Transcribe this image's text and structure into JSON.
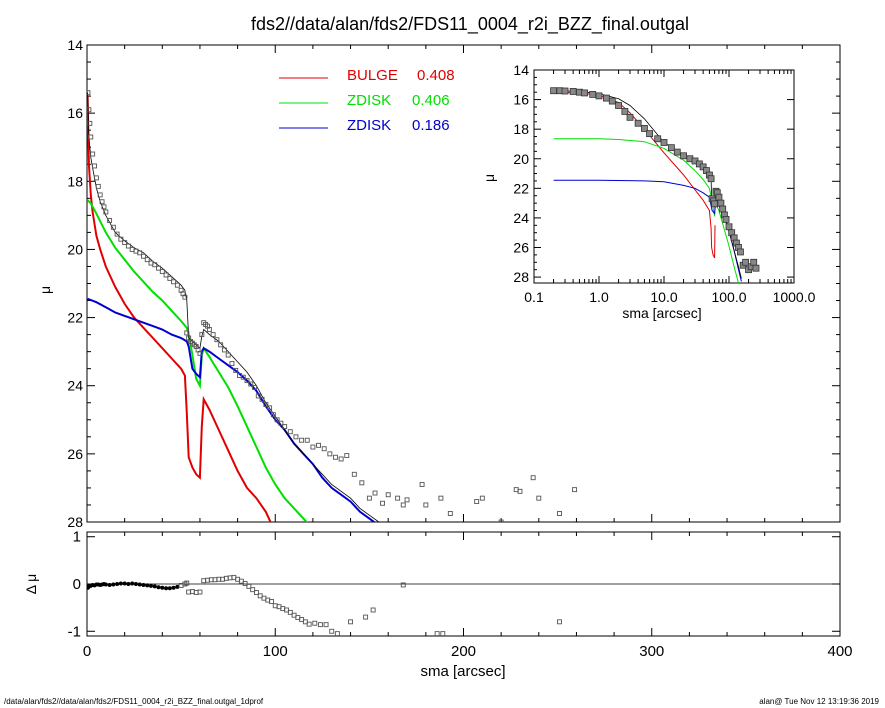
{
  "chart_data": [
    {
      "type": "line",
      "panel": "main",
      "title": "fds2//data/alan/fds2/FDS11_0004_r2i_BZZ_final.outgal",
      "xlabel": "",
      "ylabel": "μ",
      "xlim": [
        0,
        400
      ],
      "ylim": [
        28,
        14
      ],
      "y_inverted": true,
      "xticks": [
        0,
        100,
        200,
        300,
        400
      ],
      "yticks": [
        14,
        16,
        18,
        20,
        22,
        24,
        26,
        28
      ],
      "legend": [
        {
          "name": "BULGE",
          "value": "0.408",
          "color": "#e00000"
        },
        {
          "name": "ZDISK",
          "value": "0.406",
          "color": "#00e000"
        },
        {
          "name": "ZDISK",
          "value": "0.186",
          "color": "#0000d0"
        }
      ],
      "series": [
        {
          "name": "BULGE",
          "color": "#e00000",
          "x": [
            0.3,
            1,
            2,
            3,
            5,
            7,
            10,
            15,
            20,
            25,
            30,
            35,
            40,
            45,
            50,
            52,
            53,
            54,
            56,
            58,
            60,
            61,
            62,
            65,
            70,
            75,
            80,
            85,
            90,
            95,
            100
          ],
          "y": [
            15.5,
            17.5,
            18.4,
            18.9,
            19.6,
            20.0,
            20.5,
            21.1,
            21.6,
            22.0,
            22.3,
            22.6,
            22.9,
            23.2,
            23.5,
            23.7,
            24.8,
            26.1,
            26.4,
            26.6,
            26.7,
            25.2,
            24.4,
            24.7,
            25.3,
            25.9,
            26.5,
            27.0,
            27.3,
            27.7,
            28.3
          ]
        },
        {
          "name": "ZDISK",
          "color": "#00e000",
          "x": [
            0.3,
            2,
            5,
            10,
            15,
            20,
            25,
            30,
            35,
            40,
            45,
            50,
            53,
            54,
            56,
            58,
            60,
            61,
            62,
            65,
            70,
            75,
            80,
            85,
            90,
            95,
            100,
            105,
            110,
            115,
            120
          ],
          "y": [
            18.55,
            18.65,
            18.95,
            19.5,
            19.95,
            20.3,
            20.65,
            20.95,
            21.25,
            21.5,
            21.8,
            22.1,
            22.3,
            22.5,
            23.1,
            23.8,
            24.0,
            23.1,
            22.9,
            23.15,
            23.6,
            24.05,
            24.6,
            25.2,
            25.8,
            26.4,
            26.9,
            27.3,
            27.6,
            27.9,
            28.2
          ]
        },
        {
          "name": "ZDISK",
          "color": "#0000d0",
          "x": [
            0.3,
            5,
            10,
            15,
            20,
            25,
            30,
            35,
            40,
            45,
            50,
            53,
            54,
            56,
            58,
            60,
            61,
            62,
            65,
            70,
            75,
            80,
            85,
            90,
            95,
            100,
            105,
            110,
            115,
            120,
            125,
            130,
            135,
            140,
            145,
            150,
            155
          ],
          "y": [
            21.45,
            21.55,
            21.7,
            21.85,
            21.95,
            22.05,
            22.15,
            22.25,
            22.35,
            22.5,
            22.6,
            22.7,
            22.85,
            23.5,
            23.65,
            23.75,
            23.0,
            22.9,
            23.0,
            23.2,
            23.4,
            23.6,
            23.85,
            24.15,
            24.6,
            25.0,
            25.3,
            25.7,
            26.0,
            26.3,
            26.7,
            27.0,
            27.2,
            27.4,
            27.7,
            27.9,
            28.1
          ]
        },
        {
          "name": "total",
          "color": "#000000",
          "x": [
            0.3,
            1,
            2,
            3,
            5,
            7,
            10,
            15,
            20,
            25,
            30,
            35,
            40,
            45,
            50,
            52,
            53,
            54,
            56,
            58,
            60,
            61,
            62,
            65,
            70,
            75,
            80,
            85,
            90,
            95,
            100,
            105,
            110,
            115,
            120,
            125,
            130,
            135,
            140,
            145,
            150,
            155
          ],
          "y": [
            15.4,
            16.7,
            17.3,
            17.6,
            18.2,
            18.6,
            19.0,
            19.5,
            19.75,
            19.95,
            20.1,
            20.35,
            20.55,
            20.8,
            21.05,
            21.2,
            21.5,
            22.6,
            22.7,
            22.8,
            22.9,
            22.55,
            22.35,
            22.5,
            22.7,
            23.0,
            23.3,
            23.6,
            24.0,
            24.5,
            24.9,
            25.3,
            25.7,
            26.0,
            26.3,
            26.6,
            26.9,
            27.1,
            27.3,
            27.6,
            27.8,
            28.0
          ]
        }
      ],
      "points": {
        "name": "data",
        "x": [
          0.5,
          1,
          1.5,
          2,
          3,
          4,
          5,
          6,
          7,
          8,
          9,
          10,
          12,
          14,
          16,
          18,
          20,
          22,
          24,
          26,
          28,
          30,
          32,
          34,
          36,
          38,
          40,
          42,
          44,
          46,
          48,
          50,
          51,
          52,
          53,
          54,
          55,
          56,
          57,
          58,
          59,
          60,
          61,
          62,
          63,
          64,
          65,
          67,
          69,
          71,
          73,
          75,
          77,
          79,
          81,
          83,
          85,
          87,
          89,
          91,
          93,
          95,
          97,
          99,
          101,
          103,
          105,
          108,
          111,
          114,
          117,
          120,
          123,
          126,
          129,
          132,
          135,
          138,
          142,
          146,
          150,
          153,
          157,
          160,
          165,
          168,
          170,
          178,
          180,
          188,
          193,
          207,
          210,
          220,
          228,
          230,
          237,
          240,
          251,
          259
        ],
        "y": [
          15.4,
          15.9,
          16.3,
          16.7,
          17.2,
          17.55,
          17.9,
          18.15,
          18.4,
          18.6,
          18.75,
          18.9,
          19.15,
          19.35,
          19.55,
          19.7,
          19.8,
          19.9,
          20.0,
          20.05,
          20.1,
          20.2,
          20.3,
          20.4,
          20.45,
          20.55,
          20.65,
          20.75,
          20.85,
          20.95,
          21.05,
          21.2,
          21.3,
          21.4,
          22.45,
          22.6,
          22.7,
          22.75,
          22.8,
          22.85,
          22.95,
          23.05,
          22.5,
          22.15,
          22.2,
          22.25,
          22.35,
          22.5,
          22.65,
          22.8,
          22.95,
          23.1,
          23.35,
          23.55,
          23.7,
          23.75,
          23.85,
          23.95,
          24.05,
          24.3,
          24.4,
          24.55,
          24.65,
          24.85,
          25.0,
          25.1,
          25.2,
          25.35,
          25.5,
          25.6,
          25.6,
          25.8,
          25.75,
          25.85,
          26.0,
          26.1,
          26.15,
          26.05,
          26.6,
          26.85,
          27.3,
          27.15,
          27.45,
          27.2,
          27.3,
          27.5,
          27.35,
          26.9,
          27.5,
          27.3,
          27.75,
          27.4,
          27.3,
          28.0,
          27.05,
          27.1,
          26.7,
          27.3,
          27.75,
          27.05
        ]
      }
    },
    {
      "type": "line",
      "panel": "inset",
      "xlabel": "sma [arcsec]",
      "ylabel": "μ",
      "xscale": "log",
      "xlim": [
        0.1,
        1000
      ],
      "ylim": [
        28.4,
        14
      ],
      "y_inverted": true,
      "xtick_labels": [
        "0.1",
        "1.0",
        "10.0",
        "100.0",
        "1000.0"
      ],
      "xtick_values": [
        0.1,
        1,
        10,
        100,
        1000
      ],
      "yticks": [
        14,
        16,
        18,
        20,
        22,
        24,
        26,
        28
      ],
      "series": [
        {
          "name": "BULGE",
          "color": "#e00000",
          "x": [
            0.2,
            0.5,
            1,
            2,
            3,
            5,
            10,
            20,
            30,
            40,
            50,
            53,
            54,
            57,
            60,
            61
          ],
          "y": [
            15.5,
            15.55,
            15.7,
            16.2,
            16.9,
            18.0,
            19.6,
            21.1,
            22.1,
            22.8,
            23.5,
            24.7,
            26.0,
            26.5,
            26.7,
            24.5
          ]
        },
        {
          "name": "ZDISK",
          "color": "#00e000",
          "x": [
            0.2,
            1,
            2,
            5,
            10,
            20,
            30,
            40,
            50,
            55,
            60,
            62,
            70,
            80,
            100,
            120,
            140
          ],
          "y": [
            18.65,
            18.65,
            18.7,
            18.85,
            19.3,
            20.1,
            20.8,
            21.4,
            22.0,
            22.9,
            23.9,
            23.0,
            23.5,
            24.4,
            25.9,
            27.3,
            28.4
          ]
        },
        {
          "name": "ZDISK",
          "color": "#0000d0",
          "x": [
            0.2,
            1,
            5,
            10,
            20,
            30,
            40,
            50,
            55,
            60,
            62,
            70,
            80,
            100,
            120,
            140,
            155
          ],
          "y": [
            21.45,
            21.45,
            21.5,
            21.55,
            21.8,
            22.0,
            22.3,
            22.6,
            23.5,
            23.7,
            22.9,
            23.2,
            23.6,
            24.9,
            26.2,
            27.5,
            28.3
          ]
        },
        {
          "name": "total",
          "color": "#000000",
          "x": [
            0.2,
            0.5,
            1,
            2,
            3,
            5,
            10,
            20,
            30,
            40,
            50,
            53,
            54,
            57,
            60,
            62,
            70,
            80,
            100,
            120,
            140,
            155
          ],
          "y": [
            15.4,
            15.45,
            15.6,
            15.95,
            16.4,
            17.3,
            18.9,
            19.75,
            20.3,
            20.6,
            21.0,
            21.4,
            22.6,
            22.8,
            22.9,
            22.35,
            22.7,
            23.3,
            24.9,
            26.2,
            27.3,
            28.1
          ]
        }
      ],
      "points": {
        "name": "data",
        "x": [
          0.2,
          0.25,
          0.3,
          0.4,
          0.5,
          0.6,
          0.8,
          1,
          1.3,
          1.6,
          2,
          2.5,
          3,
          4,
          5,
          6,
          8,
          10,
          13,
          16,
          20,
          25,
          30,
          35,
          40,
          45,
          50,
          53,
          55,
          58,
          60,
          63,
          66,
          70,
          75,
          80,
          85,
          90,
          100,
          110,
          120,
          130,
          140,
          150,
          165,
          180,
          200,
          220,
          240,
          260
        ],
        "y": [
          15.4,
          15.4,
          15.42,
          15.45,
          15.5,
          15.55,
          15.65,
          15.75,
          15.9,
          16.1,
          16.4,
          16.8,
          17.2,
          17.6,
          17.95,
          18.3,
          18.65,
          18.9,
          19.25,
          19.55,
          19.8,
          20.0,
          20.15,
          20.35,
          20.55,
          20.8,
          21.1,
          21.35,
          22.7,
          22.85,
          23.05,
          22.2,
          22.3,
          22.6,
          23.0,
          23.4,
          23.8,
          24.1,
          24.6,
          25.0,
          25.35,
          25.7,
          26.0,
          26.3,
          27.2,
          27.0,
          27.5,
          27.3,
          27.0,
          27.4
        ]
      }
    },
    {
      "type": "scatter",
      "panel": "residual",
      "xlabel": "sma [arcsec]",
      "ylabel": "Δ μ",
      "xlim": [
        0,
        400
      ],
      "ylim": [
        -1.1,
        1.1
      ],
      "xticks": [
        0,
        100,
        200,
        300,
        400
      ],
      "yticks": [
        -1,
        0,
        1
      ],
      "points": {
        "x": [
          0.5,
          1,
          2,
          3,
          4,
          5,
          6,
          7,
          8,
          9,
          10,
          12,
          14,
          16,
          18,
          20,
          22,
          24,
          26,
          28,
          30,
          32,
          34,
          36,
          38,
          40,
          42,
          44,
          46,
          48,
          50,
          52,
          53,
          54,
          56,
          58,
          60,
          62,
          64,
          66,
          68,
          70,
          72,
          74,
          76,
          78,
          80,
          82,
          84,
          86,
          88,
          90,
          92,
          94,
          96,
          98,
          100,
          102,
          104,
          106,
          108,
          110,
          112,
          114,
          116,
          118,
          121,
          124,
          127,
          130,
          133,
          140,
          148,
          152,
          168,
          186,
          189,
          251
        ],
        "y": [
          -0.08,
          -0.05,
          -0.04,
          -0.02,
          -0.03,
          -0.01,
          -0.01,
          -0.02,
          -0.01,
          0.0,
          -0.01,
          -0.02,
          -0.01,
          0.0,
          0.01,
          0.01,
          0.0,
          0.01,
          0.0,
          -0.01,
          -0.02,
          -0.03,
          -0.04,
          -0.05,
          -0.07,
          -0.08,
          -0.09,
          -0.09,
          -0.08,
          -0.06,
          -0.03,
          0.0,
          0.02,
          -0.17,
          -0.16,
          -0.18,
          -0.17,
          0.07,
          0.08,
          0.09,
          0.09,
          0.1,
          0.1,
          0.12,
          0.13,
          0.14,
          0.1,
          0.06,
          0.01,
          -0.05,
          -0.12,
          -0.18,
          -0.25,
          -0.3,
          -0.34,
          -0.37,
          -0.46,
          -0.48,
          -0.52,
          -0.55,
          -0.6,
          -0.66,
          -0.71,
          -0.75,
          -0.8,
          -0.85,
          -0.83,
          -0.86,
          -0.86,
          -1.0,
          -1.05,
          -0.8,
          -0.7,
          -0.55,
          -0.02,
          -1.05,
          -1.05,
          -0.8
        ]
      }
    }
  ],
  "footer": {
    "left": "/data/alan/fds2//data/alan/fds2/FDS11_0004_r2i_BZZ_final.outgal_1dprof",
    "right": "alan@  Tue Nov 12 13:19:36 2019"
  }
}
